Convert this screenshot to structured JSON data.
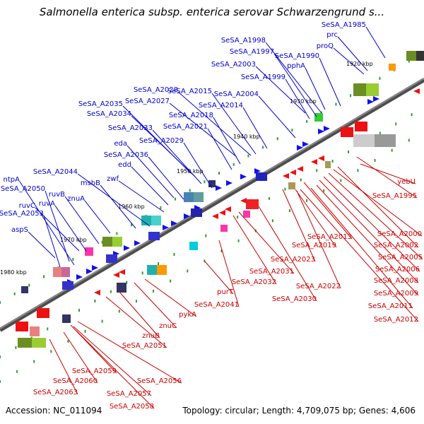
{
  "title": "Salmonella enterica subsp. enterica serovar Schwarzengrund s...",
  "footer": {
    "accession": "Accession: NC_011094",
    "topology": "Topology: circular; Length: 4,709,075 bp; Genes: 4,606"
  },
  "colors": {
    "forward_label": "#0000cc",
    "reverse_label": "#cc0000",
    "backbone": "#888888"
  },
  "kbp_ticks": [
    "1920 kbp",
    "1930 kbp",
    "1940 kbp",
    "1950 kbp",
    "1960 kbp",
    "1970 kbp",
    "1980 kbp"
  ],
  "forward_labels": [
    "SeSA_A1985",
    "prc",
    "proQ",
    "SeSA_A1998",
    "SeSA_A1997",
    "SeSA_A1990",
    "pphA",
    "SeSA_A2003",
    "SeSA_A1999",
    "SeSA_A2028",
    "SeSA_A2015",
    "SeSA_A2004",
    "SeSA_A2035",
    "SeSA_A2027",
    "SeSA_A2014",
    "SeSA_A2034",
    "SeSA_A2018",
    "SeSA_A2033",
    "SeSA_A2021",
    "eda",
    "SeSA_A2029",
    "SeSA_A2036",
    "edd",
    "SeSA_A2044",
    "zwf",
    "ntpA",
    "msbB",
    "SeSA_A2050",
    "ruvB",
    "ruvC",
    "ruvA",
    "znuA",
    "SeSA_A2053",
    "aspS"
  ],
  "reverse_labels": [
    "yebU",
    "SeSA_A1995",
    "SeSA_A2000",
    "SeSA_A2013",
    "SeSA_A2002",
    "SeSA_A2019",
    "SeSA_A2005",
    "SeSA_A2023",
    "SeSA_A2006",
    "SeSA_A2031",
    "SeSA_A2008",
    "SeSA_A2032",
    "SeSA_A2022",
    "SeSA_A2009",
    "purT",
    "SeSA_A2030",
    "SeSA_A2011",
    "SeSA_A2041",
    "SeSA_A2012",
    "pykA",
    "znuC",
    "znuB",
    "SeSA_A2051",
    "SeSA_A2059",
    "SeSA_A2056",
    "SeSA_A2060",
    "SeSA_A2063",
    "SeSA_A2057",
    "SeSA_A2058"
  ]
}
